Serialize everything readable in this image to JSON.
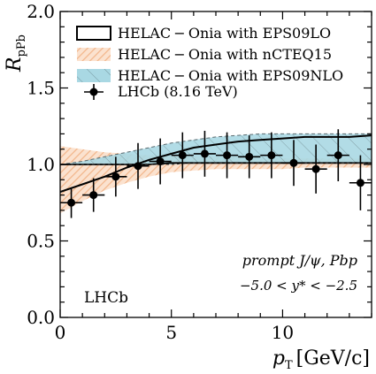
{
  "chart_data": {
    "type": "scatter",
    "ylabel_main": "R",
    "ylabel_sub": "pPb",
    "xlabel_main": "p",
    "xlabel_sub": "T",
    "xlabel_unit": "[GeV/c]",
    "xlim": [
      0,
      14
    ],
    "ylim": [
      0.0,
      2.0
    ],
    "x_ticks": [
      0,
      5,
      10
    ],
    "x_tick_labels": [
      "0",
      "5",
      "10"
    ],
    "y_ticks": [
      0.0,
      0.5,
      1.0,
      1.5,
      2.0
    ],
    "y_tick_labels": [
      "0.0",
      "0.5",
      "1.0",
      "1.5",
      "2.0"
    ],
    "legend_position": "top-left",
    "legend": [
      "HELAC − Onia with EPS09LO",
      "HELAC − Onia with nCTEQ15",
      "HELAC − Onia with EPS09NLO",
      "LHCb (8.16 TeV)"
    ],
    "annotations": {
      "process": "prompt J/ψ,  Pbp",
      "rapidity": "−5.0 < y* < −2.5",
      "experiment": "LHCb"
    },
    "colors": {
      "eps09lo_line": "#000000",
      "nCTEQ15_band": "#f7c9a4",
      "eps09nlo_band": "#a9d8e3",
      "data": "#000000"
    },
    "series": [
      {
        "name": "HELAC − Onia with EPS09LO",
        "kind": "line",
        "x": [
          0,
          1,
          2,
          3,
          4,
          5,
          6,
          7,
          8,
          9,
          10,
          11,
          12,
          13,
          14
        ],
        "y": [
          0.82,
          0.87,
          0.92,
          0.98,
          1.03,
          1.07,
          1.11,
          1.13,
          1.15,
          1.16,
          1.17,
          1.18,
          1.18,
          1.18,
          1.19
        ],
        "y_low": [
          0.82,
          0.87,
          0.92,
          0.98,
          1.03,
          1.07,
          1.11,
          1.13,
          1.15,
          1.16,
          1.17,
          1.18,
          1.18,
          1.18,
          1.19
        ],
        "y_high": [
          1.0,
          1.0,
          1.0,
          1.0,
          1.0,
          1.01,
          1.01,
          1.01,
          1.01,
          1.01,
          1.01,
          1.01,
          1.01,
          1.01,
          1.01
        ]
      },
      {
        "name": "HELAC − Onia with nCTEQ15",
        "kind": "band",
        "x": [
          0,
          1,
          2,
          3,
          4,
          5,
          6,
          7,
          8,
          9,
          10,
          11,
          12,
          13,
          14
        ],
        "y_low": [
          0.68,
          0.76,
          0.83,
          0.88,
          0.92,
          0.95,
          0.96,
          0.97,
          0.97,
          0.97,
          0.97,
          0.98,
          0.98,
          0.98,
          0.98
        ],
        "y_high": [
          1.12,
          1.1,
          1.08,
          1.07,
          1.06,
          1.06,
          1.05,
          1.05,
          1.05,
          1.04,
          1.04,
          1.04,
          1.04,
          1.04,
          1.04
        ]
      },
      {
        "name": "HELAC − Onia with EPS09NLO",
        "kind": "band",
        "x": [
          0,
          1,
          2,
          3,
          4,
          5,
          6,
          7,
          8,
          9,
          10,
          11,
          12,
          13,
          14
        ],
        "y_low": [
          1.0,
          1.0,
          1.0,
          1.0,
          1.0,
          1.0,
          1.01,
          1.01,
          1.01,
          1.01,
          1.01,
          1.01,
          1.01,
          1.01,
          1.01
        ],
        "y_high": [
          1.0,
          1.02,
          1.05,
          1.08,
          1.11,
          1.14,
          1.16,
          1.18,
          1.19,
          1.2,
          1.2,
          1.2,
          1.2,
          1.2,
          1.2
        ]
      },
      {
        "name": "LHCb (8.16 TeV)",
        "kind": "points",
        "x": [
          0.5,
          1.5,
          2.5,
          3.5,
          4.5,
          5.5,
          6.5,
          7.5,
          8.5,
          9.5,
          10.5,
          11.5,
          12.5,
          13.5
        ],
        "xerr": [
          0.5,
          0.5,
          0.5,
          0.5,
          0.5,
          0.5,
          0.5,
          0.5,
          0.5,
          0.5,
          0.5,
          0.5,
          0.5,
          0.5
        ],
        "y": [
          0.75,
          0.8,
          0.92,
          0.99,
          1.02,
          1.06,
          1.07,
          1.06,
          1.05,
          1.06,
          1.01,
          0.97,
          1.06,
          0.88
        ],
        "yerr": [
          0.1,
          0.11,
          0.13,
          0.15,
          0.15,
          0.15,
          0.15,
          0.15,
          0.14,
          0.15,
          0.15,
          0.16,
          0.17,
          0.18
        ]
      }
    ]
  }
}
